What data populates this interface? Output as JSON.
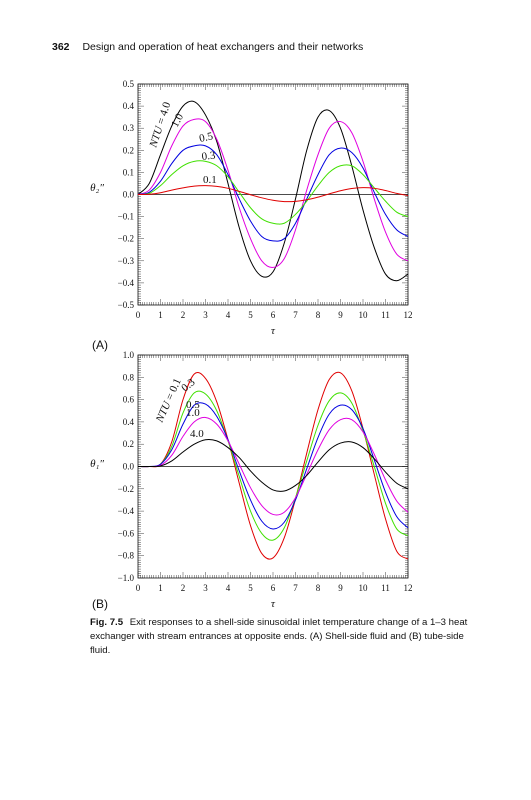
{
  "header": {
    "page_number": "362",
    "running_title": "Design and operation of heat exchangers and their networks"
  },
  "caption": {
    "label": "Fig. 7.5",
    "text": "Exit responses to a shell-side sinusoidal inlet temperature change of a 1–3 heat exchanger with stream entrances at opposite ends. (A) Shell-side fluid and (B) tube-side fluid."
  },
  "chart_data": [
    {
      "type": "line",
      "panel_label": "(A)",
      "xlabel": "τ",
      "ylabel": "θ₂″",
      "xlim": [
        0,
        12
      ],
      "ylim": [
        -0.5,
        0.5
      ],
      "xticks": [
        0,
        1,
        2,
        3,
        4,
        5,
        6,
        7,
        8,
        9,
        10,
        11,
        12
      ],
      "yticks": [
        0.5,
        0.4,
        0.3,
        0.2,
        0.1,
        0.0,
        -0.1,
        -0.2,
        -0.3,
        -0.4,
        -0.5
      ],
      "ytick_labels": [
        "0.5",
        "0.4",
        "0.3",
        "0.2",
        "0.1",
        "0.0",
        "−0.1",
        "−0.2",
        "−0.3",
        "−0.4",
        "−0.5"
      ],
      "grid": false,
      "series_label_prefix": "NTU = ",
      "series": [
        {
          "name": "4.0",
          "color": "#000000",
          "label_text": "NTU = 4.0",
          "x": [
            0,
            0.5,
            1,
            1.5,
            2,
            2.5,
            3,
            3.5,
            4,
            4.5,
            5,
            5.5,
            6,
            6.5,
            7,
            7.5,
            8,
            8.5,
            9,
            9.5,
            10,
            10.5,
            11,
            11.5,
            12
          ],
          "y": [
            0,
            0.05,
            0.18,
            0.31,
            0.4,
            0.42,
            0.36,
            0.24,
            0.05,
            -0.15,
            -0.3,
            -0.37,
            -0.35,
            -0.22,
            -0.02,
            0.2,
            0.35,
            0.38,
            0.3,
            0.13,
            -0.07,
            -0.24,
            -0.36,
            -0.39,
            -0.36
          ]
        },
        {
          "name": "1.0",
          "color": "#e000e0",
          "label_text": "1.0",
          "x": [
            0,
            0.5,
            1,
            1.5,
            2,
            2.5,
            3,
            3.5,
            4,
            4.5,
            5,
            5.5,
            6,
            6.5,
            7,
            7.5,
            8,
            8.5,
            9,
            9.5,
            10,
            10.5,
            11,
            11.5,
            12
          ],
          "y": [
            0,
            0.02,
            0.1,
            0.22,
            0.31,
            0.34,
            0.33,
            0.25,
            0.11,
            -0.06,
            -0.2,
            -0.3,
            -0.33,
            -0.29,
            -0.16,
            0.02,
            0.18,
            0.3,
            0.33,
            0.28,
            0.15,
            -0.02,
            -0.17,
            -0.27,
            -0.3
          ]
        },
        {
          "name": "0.5",
          "color": "#0000e0",
          "label_text": "0.5",
          "x": [
            0,
            0.5,
            1,
            1.5,
            2,
            2.5,
            3,
            3.5,
            4,
            4.5,
            5,
            5.5,
            6,
            6.5,
            7,
            7.5,
            8,
            8.5,
            9,
            9.5,
            10,
            10.5,
            11,
            11.5,
            12
          ],
          "y": [
            0,
            0.01,
            0.06,
            0.14,
            0.2,
            0.22,
            0.22,
            0.18,
            0.09,
            -0.02,
            -0.12,
            -0.19,
            -0.21,
            -0.2,
            -0.13,
            -0.02,
            0.09,
            0.18,
            0.21,
            0.19,
            0.12,
            0.01,
            -0.09,
            -0.16,
            -0.19
          ]
        },
        {
          "name": "0.3",
          "color": "#40e000",
          "label_text": "0.3",
          "x": [
            0,
            0.5,
            1,
            1.5,
            2,
            2.5,
            3,
            3.5,
            4,
            4.5,
            5,
            5.5,
            6,
            6.5,
            7,
            7.5,
            8,
            8.5,
            9,
            9.5,
            10,
            10.5,
            11,
            11.5,
            12
          ],
          "y": [
            0,
            0.005,
            0.04,
            0.09,
            0.13,
            0.15,
            0.15,
            0.13,
            0.08,
            0.01,
            -0.06,
            -0.11,
            -0.13,
            -0.13,
            -0.09,
            -0.03,
            0.04,
            0.1,
            0.13,
            0.13,
            0.09,
            0.03,
            -0.03,
            -0.08,
            -0.1
          ]
        },
        {
          "name": "0.1",
          "color": "#e00000",
          "label_text": "0.1",
          "x": [
            0,
            0.5,
            1,
            1.5,
            2,
            2.5,
            3,
            3.5,
            4,
            4.5,
            5,
            5.5,
            6,
            6.5,
            7,
            7.5,
            8,
            8.5,
            9,
            9.5,
            10,
            10.5,
            11,
            11.5,
            12
          ],
          "y": [
            0,
            0.001,
            0.008,
            0.02,
            0.03,
            0.038,
            0.04,
            0.037,
            0.028,
            0.014,
            -0.001,
            -0.015,
            -0.026,
            -0.032,
            -0.031,
            -0.024,
            -0.012,
            0.003,
            0.017,
            0.027,
            0.031,
            0.028,
            0.018,
            0.005,
            -0.005
          ]
        }
      ],
      "curve_labels": [
        "NTU = 4.0",
        "1.0",
        "0.5",
        "0.3",
        "0.1"
      ]
    },
    {
      "type": "line",
      "panel_label": "(B)",
      "xlabel": "τ",
      "ylabel": "θ₁″",
      "xlim": [
        0,
        12
      ],
      "ylim": [
        -1.0,
        1.0
      ],
      "xticks": [
        0,
        1,
        2,
        3,
        4,
        5,
        6,
        7,
        8,
        9,
        10,
        11,
        12
      ],
      "yticks": [
        1.0,
        0.8,
        0.6,
        0.4,
        0.2,
        0.0,
        -0.2,
        -0.4,
        -0.6,
        -0.8,
        -1.0
      ],
      "ytick_labels": [
        "1.0",
        "0.8",
        "0.6",
        "0.4",
        "0.2",
        "0.0",
        "−0.2",
        "−0.4",
        "−0.6",
        "−0.8",
        "−1.0"
      ],
      "grid": false,
      "series": [
        {
          "name": "0.1",
          "color": "#e00000",
          "label_text": "NTU = 0.1",
          "x": [
            0,
            0.5,
            1,
            1.5,
            2,
            2.5,
            3,
            3.5,
            4,
            4.5,
            5,
            5.5,
            6,
            6.5,
            7,
            7.5,
            8,
            8.5,
            9,
            9.5,
            10,
            10.5,
            11,
            11.5,
            12
          ],
          "y": [
            0,
            0,
            0.02,
            0.22,
            0.6,
            0.83,
            0.79,
            0.58,
            0.24,
            -0.15,
            -0.53,
            -0.78,
            -0.82,
            -0.64,
            -0.29,
            0.12,
            0.51,
            0.78,
            0.84,
            0.68,
            0.34,
            -0.07,
            -0.47,
            -0.76,
            -0.83
          ]
        },
        {
          "name": "0.3",
          "color": "#40e000",
          "label_text": "0.3",
          "x": [
            0,
            0.5,
            1,
            1.5,
            2,
            2.5,
            3,
            3.5,
            4,
            4.5,
            5,
            5.5,
            6,
            6.5,
            7,
            7.5,
            8,
            8.5,
            9,
            9.5,
            10,
            10.5,
            11,
            11.5,
            12
          ],
          "y": [
            0,
            0,
            0.02,
            0.18,
            0.48,
            0.66,
            0.65,
            0.5,
            0.23,
            -0.09,
            -0.4,
            -0.6,
            -0.66,
            -0.55,
            -0.28,
            0.05,
            0.37,
            0.59,
            0.66,
            0.57,
            0.32,
            0.0,
            -0.33,
            -0.56,
            -0.62
          ]
        },
        {
          "name": "0.5",
          "color": "#0000e0",
          "label_text": "0.5",
          "x": [
            0,
            0.5,
            1,
            1.5,
            2,
            2.5,
            3,
            3.5,
            4,
            4.5,
            5,
            5.5,
            6,
            6.5,
            7,
            7.5,
            8,
            8.5,
            9,
            9.5,
            10,
            10.5,
            11,
            11.5,
            12
          ],
          "y": [
            0,
            0,
            0.02,
            0.15,
            0.38,
            0.55,
            0.56,
            0.45,
            0.24,
            -0.04,
            -0.3,
            -0.49,
            -0.56,
            -0.5,
            -0.3,
            -0.02,
            0.26,
            0.47,
            0.55,
            0.51,
            0.34,
            0.06,
            -0.23,
            -0.45,
            -0.55
          ]
        },
        {
          "name": "1.0",
          "color": "#e000e0",
          "label_text": "1.0",
          "x": [
            0,
            0.5,
            1,
            1.5,
            2,
            2.5,
            3,
            3.5,
            4,
            4.5,
            5,
            5.5,
            6,
            6.5,
            7,
            7.5,
            8,
            8.5,
            9,
            9.5,
            10,
            10.5,
            11,
            11.5,
            12
          ],
          "y": [
            0,
            0,
            0.01,
            0.1,
            0.27,
            0.4,
            0.44,
            0.38,
            0.23,
            0.02,
            -0.19,
            -0.35,
            -0.43,
            -0.41,
            -0.28,
            -0.07,
            0.15,
            0.33,
            0.42,
            0.42,
            0.31,
            0.11,
            -0.12,
            -0.31,
            -0.41
          ]
        },
        {
          "name": "4.0",
          "color": "#000000",
          "label_text": "4.0",
          "x": [
            0,
            0.5,
            1,
            1.5,
            2,
            2.5,
            3,
            3.5,
            4,
            4.5,
            5,
            5.5,
            6,
            6.5,
            7,
            7.5,
            8,
            8.5,
            9,
            9.5,
            10,
            10.5,
            11,
            11.5,
            12
          ],
          "y": [
            0,
            0,
            0.005,
            0.05,
            0.13,
            0.2,
            0.24,
            0.23,
            0.17,
            0.08,
            -0.04,
            -0.14,
            -0.21,
            -0.22,
            -0.17,
            -0.08,
            0.04,
            0.15,
            0.21,
            0.22,
            0.17,
            0.07,
            -0.05,
            -0.15,
            -0.2
          ]
        }
      ],
      "curve_labels": [
        "NTU = 0.1",
        "0.3",
        "0.5",
        "1.0",
        "4.0"
      ]
    }
  ]
}
